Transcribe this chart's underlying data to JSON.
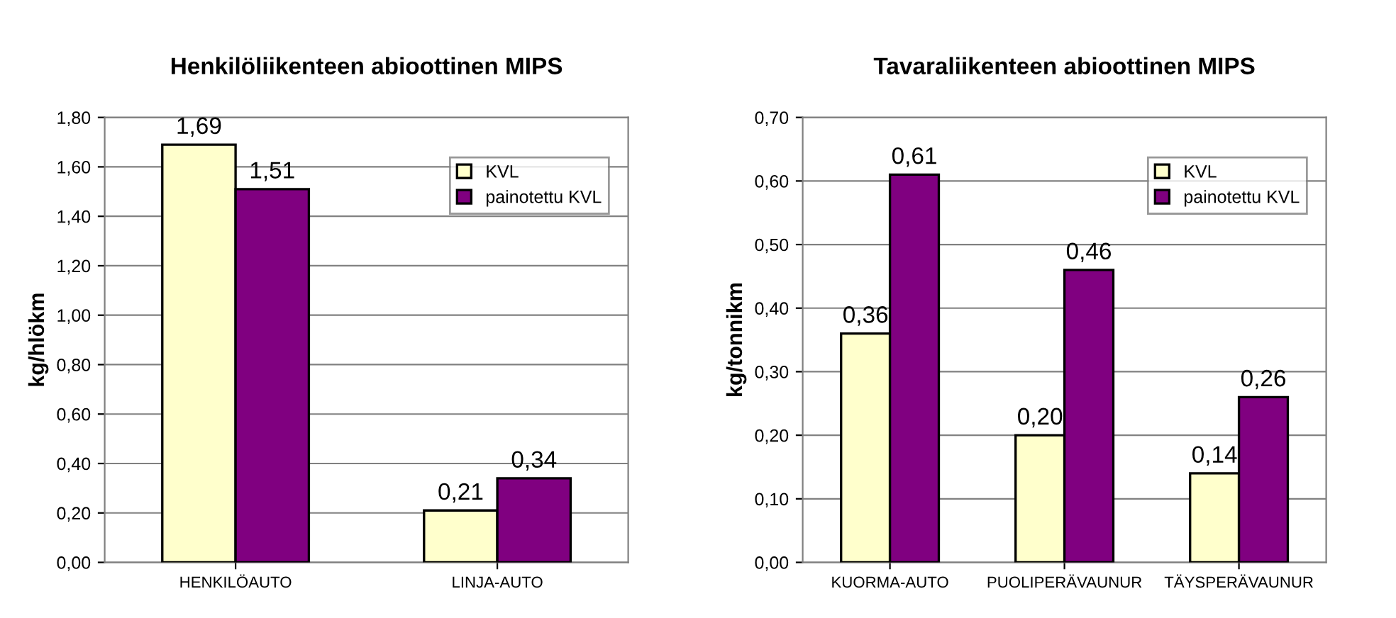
{
  "chart_data": [
    {
      "type": "bar",
      "title": "Henkilöliikenteen abioottinen MIPS",
      "ylabel": "kg/hlökm",
      "categories": [
        "HENKILÖAUTO",
        "LINJA-AUTO"
      ],
      "series": [
        {
          "name": "KVL",
          "color": "#ffffcc",
          "values": [
            1.69,
            0.21
          ],
          "value_labels": [
            "1,69",
            "0,21"
          ]
        },
        {
          "name": "painotettu KVL",
          "color": "#800080",
          "values": [
            1.51,
            0.34
          ],
          "value_labels": [
            "1,51",
            "0,34"
          ]
        }
      ],
      "ylim": [
        0,
        1.8
      ],
      "yticks": [
        {
          "value": 0,
          "label": "0,00"
        },
        {
          "value": 0.2,
          "label": "0,20"
        },
        {
          "value": 0.4,
          "label": "0,40"
        },
        {
          "value": 0.6,
          "label": "0,60"
        },
        {
          "value": 0.8,
          "label": "0,80"
        },
        {
          "value": 1.0,
          "label": "1,00"
        },
        {
          "value": 1.2,
          "label": "1,20"
        },
        {
          "value": 1.4,
          "label": "1,40"
        },
        {
          "value": 1.6,
          "label": "1,60"
        },
        {
          "value": 1.8,
          "label": "1,80"
        }
      ],
      "grid": "y",
      "legend": "top right"
    },
    {
      "type": "bar",
      "title": "Tavaraliikenteen abioottinen MIPS",
      "ylabel": "kg/tonnikm",
      "categories": [
        "KUORMA-AUTO",
        "PUOLIPERÄVAUNUR",
        "TÄYSPERÄVAUNUR"
      ],
      "series": [
        {
          "name": "KVL",
          "color": "#ffffcc",
          "values": [
            0.36,
            0.2,
            0.14
          ],
          "value_labels": [
            "0,36",
            "0,20",
            "0,14"
          ]
        },
        {
          "name": "painotettu KVL",
          "color": "#800080",
          "values": [
            0.61,
            0.46,
            0.26
          ],
          "value_labels": [
            "0,61",
            "0,46",
            "0,26"
          ]
        }
      ],
      "ylim": [
        0,
        0.7
      ],
      "yticks": [
        {
          "value": 0,
          "label": "0,00"
        },
        {
          "value": 0.1,
          "label": "0,10"
        },
        {
          "value": 0.2,
          "label": "0,20"
        },
        {
          "value": 0.3,
          "label": "0,30"
        },
        {
          "value": 0.4,
          "label": "0,40"
        },
        {
          "value": 0.5,
          "label": "0,50"
        },
        {
          "value": 0.6,
          "label": "0,60"
        },
        {
          "value": 0.7,
          "label": "0,70"
        }
      ],
      "grid": "y",
      "legend": "top right"
    }
  ]
}
